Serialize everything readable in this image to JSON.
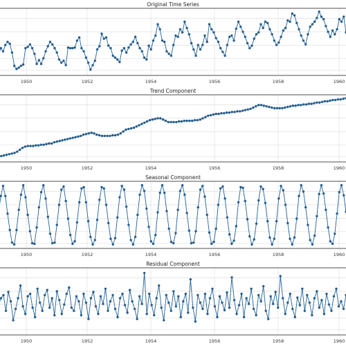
{
  "chart_data": [
    {
      "type": "line",
      "title": "Original Time Series",
      "x_ticks": [
        1950,
        1952,
        1954,
        1956,
        1958,
        1960
      ],
      "xlim": [
        1949,
        1961
      ],
      "ylim": [
        0,
        1
      ],
      "grid": true,
      "color": "#1f5f96",
      "series": [
        {
          "values": [
            0.3,
            0.4,
            0.35,
            0.45,
            0.5,
            0.47,
            0.33,
            0.12,
            0.07,
            0.09,
            0.12,
            0.14,
            0.4,
            0.42,
            0.46,
            0.4,
            0.31,
            0.15,
            0.21,
            0.15,
            0.24,
            0.35,
            0.43,
            0.5,
            0.46,
            0.4,
            0.33,
            0.22,
            0.17,
            0.2,
            0.13,
            0.41,
            0.4,
            0.4,
            0.41,
            0.52,
            0.57,
            0.4,
            0.35,
            0.25,
            0.17,
            0.06,
            0.13,
            0.2,
            0.38,
            0.43,
            0.63,
            0.55,
            0.57,
            0.44,
            0.4,
            0.28,
            0.25,
            0.22,
            0.18,
            0.36,
            0.4,
            0.33,
            0.41,
            0.46,
            0.5,
            0.58,
            0.48,
            0.4,
            0.35,
            0.25,
            0.22,
            0.44,
            0.38,
            0.52,
            0.6,
            0.78,
            0.7,
            0.52,
            0.5,
            0.35,
            0.31,
            0.28,
            0.45,
            0.6,
            0.58,
            0.7,
            0.65,
            0.82,
            0.72,
            0.62,
            0.48,
            0.38,
            0.28,
            0.45,
            0.38,
            0.45,
            0.6,
            0.5,
            0.78,
            0.7,
            0.65,
            0.56,
            0.5,
            0.4,
            0.34,
            0.28,
            0.45,
            0.58,
            0.6,
            0.52,
            0.71,
            0.82,
            0.74,
            0.66,
            0.58,
            0.48,
            0.4,
            0.44,
            0.55,
            0.62,
            0.65,
            0.78,
            0.72,
            0.82,
            0.8,
            0.7,
            0.62,
            0.52,
            0.45,
            0.49,
            0.58,
            0.68,
            0.72,
            0.84,
            0.82,
            0.95,
            0.92,
            0.8,
            0.7,
            0.6,
            0.52,
            0.46,
            0.62,
            0.74,
            0.78,
            0.82,
            0.88,
            0.98,
            0.9,
            0.86,
            0.75,
            0.66,
            0.58,
            0.68,
            0.62,
            0.7,
            0.86,
            0.82,
            0.9,
            0.65
          ]
        }
      ]
    },
    {
      "type": "line",
      "title": "Trend Component",
      "x_ticks": [
        1950,
        1952,
        1954,
        1956,
        1958,
        1960
      ],
      "xlim": [
        1949,
        1961
      ],
      "ylim": [
        0,
        1
      ],
      "grid": true,
      "color": "#1f5f96",
      "series": [
        {
          "values": [
            0.05,
            0.06,
            0.07,
            0.08,
            0.09,
            0.1,
            0.11,
            0.13,
            0.16,
            0.19,
            0.21,
            0.22,
            0.22,
            0.22,
            0.23,
            0.23,
            0.24,
            0.24,
            0.25,
            0.26,
            0.26,
            0.28,
            0.29,
            0.3,
            0.31,
            0.32,
            0.33,
            0.34,
            0.35,
            0.36,
            0.37,
            0.38,
            0.4,
            0.41,
            0.42,
            0.43,
            0.42,
            0.4,
            0.39,
            0.38,
            0.38,
            0.38,
            0.38,
            0.39,
            0.39,
            0.4,
            0.42,
            0.45,
            0.48,
            0.49,
            0.5,
            0.51,
            0.53,
            0.55,
            0.57,
            0.59,
            0.61,
            0.63,
            0.64,
            0.65,
            0.66,
            0.66,
            0.64,
            0.62,
            0.6,
            0.6,
            0.6,
            0.6,
            0.61,
            0.61,
            0.62,
            0.62,
            0.62,
            0.62,
            0.63,
            0.63,
            0.64,
            0.66,
            0.68,
            0.7,
            0.71,
            0.72,
            0.73,
            0.73,
            0.74,
            0.74,
            0.75,
            0.75,
            0.76,
            0.76,
            0.77,
            0.77,
            0.78,
            0.79,
            0.8,
            0.81,
            0.83,
            0.85,
            0.87,
            0.87,
            0.86,
            0.85,
            0.84,
            0.83,
            0.82,
            0.82,
            0.82,
            0.82,
            0.83,
            0.84,
            0.85,
            0.86,
            0.86,
            0.87,
            0.87,
            0.88,
            0.88,
            0.89,
            0.89,
            0.9,
            0.91,
            0.91,
            0.92,
            0.93,
            0.93,
            0.94,
            0.95,
            0.95,
            0.96,
            0.96,
            0.97,
            0.98
          ]
        }
      ]
    },
    {
      "type": "line",
      "title": "Seasonal Component",
      "x_ticks": [
        1950,
        1952,
        1954,
        1956,
        1958,
        1960
      ],
      "xlim": [
        1949,
        1961
      ],
      "ylim": [
        0,
        1
      ],
      "grid": true,
      "color": "#1f5f96",
      "series": [
        {
          "values": [
            0.55,
            0.8,
            0.96,
            0.8,
            0.52,
            0.26,
            0.06,
            0.03,
            0.26,
            0.58,
            0.82,
            0.97,
            0.78,
            0.5,
            0.24,
            0.05,
            0.04,
            0.3,
            0.62,
            0.86,
            0.97,
            0.76,
            0.47,
            0.2,
            0.05,
            0.06,
            0.34,
            0.66,
            0.9,
            0.95,
            0.72,
            0.44,
            0.18,
            0.04,
            0.08,
            0.38,
            0.7,
            0.92,
            0.94,
            0.7,
            0.4,
            0.15,
            0.03,
            0.1,
            0.42,
            0.74,
            0.94,
            0.92,
            0.66,
            0.37,
            0.12,
            0.03,
            0.13,
            0.46,
            0.78,
            0.96,
            0.9,
            0.63,
            0.34,
            0.1,
            0.03,
            0.15,
            0.5,
            0.82,
            0.97,
            0.88,
            0.6,
            0.31,
            0.08,
            0.04,
            0.18,
            0.54,
            0.85,
            0.97,
            0.85,
            0.56,
            0.28,
            0.07,
            0.05,
            0.21,
            0.58,
            0.88,
            0.97,
            0.82,
            0.53,
            0.25,
            0.05,
            0.06,
            0.24,
            0.62,
            0.9,
            0.96,
            0.79,
            0.5,
            0.22,
            0.04,
            0.07,
            0.28,
            0.66,
            0.92,
            0.95,
            0.76,
            0.46,
            0.19,
            0.04,
            0.09,
            0.32,
            0.7,
            0.94,
            0.93,
            0.72,
            0.43,
            0.16,
            0.03,
            0.11,
            0.36,
            0.73,
            0.95,
            0.91,
            0.69,
            0.4,
            0.14,
            0.03,
            0.12,
            0.4,
            0.76,
            0.96,
            0.89,
            0.66,
            0.37,
            0.12,
            0.03,
            0.14,
            0.44,
            0.8,
            0.97,
            0.87,
            0.62,
            0.34,
            0.1,
            0.03,
            0.17,
            0.48,
            0.83,
            0.97,
            0.84,
            0.58,
            0.3,
            0.08,
            0.04,
            0.2,
            0.52,
            0.86,
            0.97,
            0.81,
            0.55
          ]
        }
      ]
    },
    {
      "type": "line",
      "title": "Residual Component",
      "x_ticks": [
        1950,
        1952,
        1954,
        1956,
        1958,
        1960
      ],
      "xlim": [
        1949,
        1961
      ],
      "ylim": [
        0,
        1
      ],
      "grid": true,
      "color": "#1f5f96",
      "series": [
        {
          "values": [
            0.45,
            0.55,
            0.6,
            0.35,
            0.65,
            0.5,
            0.2,
            0.38,
            0.55,
            0.75,
            0.42,
            0.3,
            0.58,
            0.62,
            0.4,
            0.25,
            0.7,
            0.48,
            0.35,
            0.6,
            0.68,
            0.4,
            0.55,
            0.28,
            0.66,
            0.52,
            0.3,
            0.45,
            0.62,
            0.72,
            0.4,
            0.35,
            0.58,
            0.5,
            0.28,
            0.62,
            0.48,
            0.22,
            0.55,
            0.65,
            0.42,
            0.3,
            0.58,
            0.46,
            0.7,
            0.35,
            0.5,
            0.6,
            0.38,
            0.25,
            0.55,
            0.62,
            0.44,
            0.32,
            0.68,
            0.5,
            0.38,
            0.22,
            0.58,
            0.46,
            0.95,
            0.3,
            0.62,
            0.44,
            0.28,
            0.55,
            0.75,
            0.4,
            0.2,
            0.6,
            0.48,
            0.35,
            0.66,
            0.42,
            0.58,
            0.25,
            0.5,
            0.62,
            0.32,
            0.85,
            0.4,
            0.18,
            0.6,
            0.48,
            0.38,
            0.62,
            0.3,
            0.55,
            0.7,
            0.42,
            0.25,
            0.58,
            0.48,
            0.36,
            0.64,
            0.4,
            0.88,
            0.52,
            0.3,
            0.44,
            0.62,
            0.25,
            0.55,
            0.46,
            0.7,
            0.38,
            0.28,
            0.6,
            0.5,
            0.74,
            0.35,
            0.22,
            0.58,
            0.46,
            0.65,
            0.4,
            0.9,
            0.55,
            0.3,
            0.48,
            0.62,
            0.38,
            0.25,
            0.56,
            0.44,
            0.7,
            0.35,
            0.6,
            0.48,
            0.28,
            0.55,
            0.66,
            0.4,
            0.52,
            0.3,
            0.62,
            0.45,
            0.35,
            0.58,
            0.7,
            0.42,
            0.5,
            0.38,
            0.6
          ]
        }
      ]
    }
  ]
}
